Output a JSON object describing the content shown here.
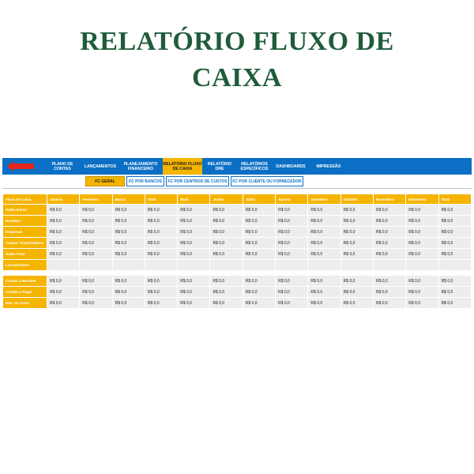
{
  "title_lines": [
    "RELATÓRIO FLUXO DE",
    "CAIXA"
  ],
  "colors": {
    "title": "#1f5c3a",
    "nav": "#0a6fc5",
    "accent": "#f5b400",
    "cell": "#ededed"
  },
  "nav": {
    "back_icon": "red-left-arrow-icon",
    "items": [
      {
        "label": "PLANO DE CONTAS",
        "active": false
      },
      {
        "label": "LANÇAMENTOS",
        "active": false
      },
      {
        "label": "PLANEJAMENTO FINANCEIRO",
        "active": false
      },
      {
        "label": "RELATÓRIO FLUXO DE CAIXA",
        "active": true
      },
      {
        "label": "RELATÓRIO DRE",
        "active": false
      },
      {
        "label": "RELATÓRIOS ESPECÍFICOS",
        "active": false
      },
      {
        "label": "DASHBOARDS",
        "active": false
      },
      {
        "label": "IMPRESSÃO",
        "active": false
      }
    ]
  },
  "subtabs": [
    {
      "label": "FC GERAL",
      "active": true
    },
    {
      "label": "FC POR BANCOS",
      "active": false
    },
    {
      "label": "FC POR CENTROS DE CUSTOS",
      "active": false
    },
    {
      "label": "FC POR CLIENTE OU FORNECEDOR",
      "active": false
    }
  ],
  "table": {
    "headers": [
      "Fluxo de Caixa",
      "Janeiro",
      "Fevereiro",
      "Março",
      "Abril",
      "Maio",
      "Junho",
      "Julho",
      "Agosto",
      "Setembro",
      "Outubro",
      "Novembro",
      "Dezembro",
      "Total"
    ],
    "rows": [
      {
        "label": "Saldo Inicial",
        "values": [
          "R$ 0,0",
          "R$ 0,0",
          "R$ 0,0",
          "R$ 0,0",
          "R$ 0,0",
          "R$ 0,0",
          "R$ 0,0",
          "R$ 0,0",
          "R$ 0,0",
          "R$ 0,0",
          "R$ 0,0",
          "R$ 0,0",
          "R$ 0,0"
        ]
      },
      {
        "label": "Receitas",
        "values": [
          "R$ 0,0",
          "R$ 0,0",
          "R$ 0,0",
          "R$ 0,0",
          "R$ 0,0",
          "R$ 0,0",
          "R$ 0,0",
          "R$ 0,0",
          "R$ 0,0",
          "R$ 0,0",
          "R$ 0,0",
          "R$ 0,0",
          "R$ 0,0"
        ]
      },
      {
        "label": "Despesas",
        "values": [
          "R$ 0,0",
          "R$ 0,0",
          "R$ 0,0",
          "R$ 0,0",
          "R$ 0,0",
          "R$ 0,0",
          "R$ 0,0",
          "R$ 0,0",
          "R$ 0,0",
          "R$ 0,0",
          "R$ 0,0",
          "R$ 0,0",
          "R$ 0,0"
        ]
      },
      {
        "label": "Custos / Empréstimos",
        "values": [
          "R$ 0,0",
          "R$ 0,0",
          "R$ 0,0",
          "R$ 0,0",
          "R$ 0,0",
          "R$ 0,0",
          "R$ 0,0",
          "R$ 0,0",
          "R$ 0,0",
          "R$ 0,0",
          "R$ 0,0",
          "R$ 0,0",
          "R$ 0,0"
        ]
      },
      {
        "label": "Saldo Final",
        "values": [
          "R$ 0,0",
          "R$ 0,0",
          "R$ 0,0",
          "R$ 0,0",
          "R$ 0,0",
          "R$ 0,0",
          "R$ 0,0",
          "R$ 0,0",
          "R$ 0,0",
          "R$ 0,0",
          "R$ 0,0",
          "R$ 0,0",
          "R$ 0,0"
        ]
      },
      {
        "label": "Lucratividade",
        "values": [
          "",
          "",
          "",
          "",
          "",
          "",
          "",
          "",
          "",
          "",
          "",
          "",
          ""
        ]
      }
    ],
    "rows2": [
      {
        "label": "Contas a Receber",
        "values": [
          "R$ 0,0",
          "R$ 0,0",
          "R$ 0,0",
          "R$ 0,0",
          "R$ 0,0",
          "R$ 0,0",
          "R$ 0,0",
          "R$ 0,0",
          "R$ 0,0",
          "R$ 0,0",
          "R$ 0,0",
          "R$ 0,0",
          "R$ 0,0"
        ]
      },
      {
        "label": "Contas a Pagar",
        "values": [
          "R$ 0,0",
          "R$ 0,0",
          "R$ 0,0",
          "R$ 0,0",
          "R$ 0,0",
          "R$ 0,0",
          "R$ 0,0",
          "R$ 0,0",
          "R$ 0,0",
          "R$ 0,0",
          "R$ 0,0",
          "R$ 0,0",
          "R$ 0,0"
        ]
      },
      {
        "label": "Res. do Caixa",
        "values": [
          "R$ 0,0",
          "R$ 0,0",
          "R$ 0,0",
          "R$ 0,0",
          "R$ 0,0",
          "R$ 0,0",
          "R$ 0,0",
          "R$ 0,0",
          "R$ 0,0",
          "R$ 0,0",
          "R$ 0,0",
          "R$ 0,0",
          "R$ 0,0"
        ]
      }
    ]
  }
}
